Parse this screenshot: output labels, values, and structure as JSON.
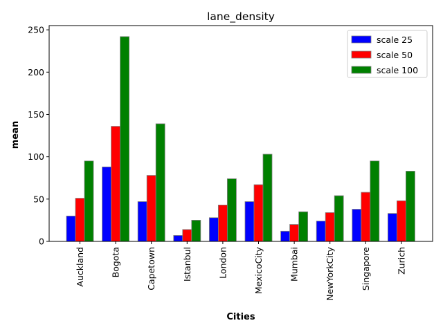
{
  "chart_data": {
    "type": "bar",
    "title": "lane_density",
    "xlabel": "Cities",
    "ylabel": "mean",
    "ylim": [
      0,
      255
    ],
    "yticks": [
      0,
      50,
      100,
      150,
      200,
      250
    ],
    "categories": [
      "Auckland",
      "Bogota",
      "Capetown",
      "Istanbul",
      "London",
      "MexicoCity",
      "Mumbai",
      "NewYorkCity",
      "Singapore",
      "Zurich"
    ],
    "series": [
      {
        "name": "scale 25",
        "color": "#0000ff",
        "values": [
          30,
          88,
          47,
          7,
          28,
          47,
          12,
          24,
          38,
          33
        ]
      },
      {
        "name": "scale 50",
        "color": "#ff0000",
        "values": [
          51,
          136,
          78,
          14,
          43,
          67,
          20,
          34,
          58,
          48
        ]
      },
      {
        "name": "scale 100",
        "color": "#008000",
        "values": [
          95,
          242,
          139,
          25,
          74,
          103,
          35,
          54,
          95,
          83
        ]
      }
    ],
    "legend_position": "top-right",
    "grid": false
  }
}
